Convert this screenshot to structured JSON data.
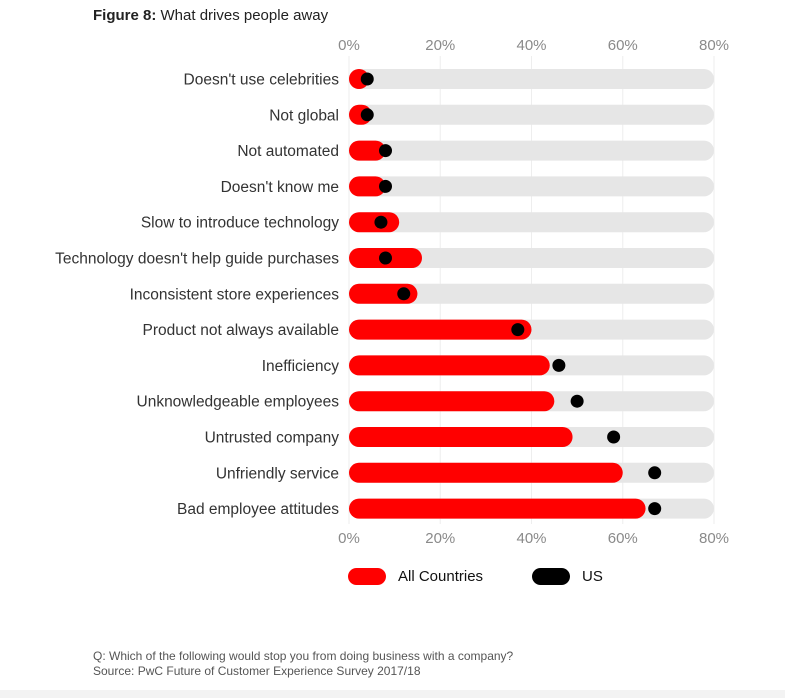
{
  "figure": {
    "label": "Figure 8:",
    "title": "What drives people away"
  },
  "chart_data": {
    "type": "bar",
    "title": "What drives people away",
    "categories": [
      "Doesn't use celebrities",
      "Not global",
      "Not automated",
      "Doesn't know me",
      "Slow to introduce technology",
      "Technology doesn't help guide purchases",
      "Inconsistent store experiences",
      "Product not always available",
      "Inefficiency",
      "Unknowledgeable employees",
      "Untrusted company",
      "Unfriendly service",
      "Bad employee attitudes"
    ],
    "series": [
      {
        "name": "All Countries",
        "values": [
          4,
          5,
          8,
          8,
          11,
          16,
          15,
          40,
          44,
          45,
          49,
          60,
          65
        ]
      },
      {
        "name": "US",
        "values": [
          4,
          4,
          8,
          8,
          7,
          8,
          12,
          37,
          46,
          50,
          58,
          67,
          67
        ]
      }
    ],
    "xlim": [
      0,
      80
    ],
    "xticks": [
      "0%",
      "20%",
      "40%",
      "60%",
      "80%"
    ],
    "legend": "bottom",
    "colors": {
      "all_countries": "#ff0000",
      "us": "#000000",
      "track": "#e6e6e6"
    }
  },
  "footer": {
    "question": "Q: Which of the following would stop you from doing business with a company?",
    "source": "Source: PwC Future of Customer Experience Survey 2017/18"
  }
}
